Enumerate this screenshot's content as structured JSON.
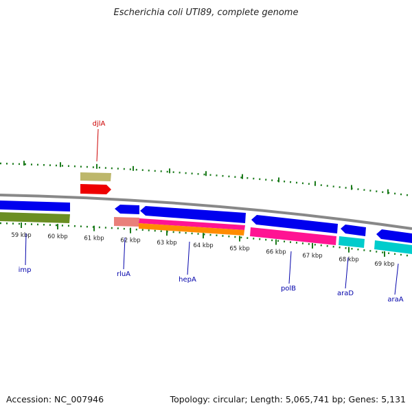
{
  "title": "Escherichia coli UTI89, complete genome",
  "footer": {
    "accession": "Accession: NC_007946",
    "summary": "Topology: circular; Length: 5,065,741 bp; Genes: 5,131"
  },
  "colors": {
    "backbone": "#888888",
    "ticks": "#1a7a1a",
    "blue": "#0000ee",
    "olive": "#6b8e23",
    "khaki": "#bdb76b",
    "red": "#ee0000",
    "salmon": "#e9807a",
    "pink": "#ff1493",
    "orange": "#ff8c00",
    "cyan": "#00cccc",
    "label_blue": "#0000aa",
    "label_red": "#cc0000"
  },
  "scale_labels": [
    "59 kbp",
    "60 kbp",
    "61 kbp",
    "62 kbp",
    "63 kbp",
    "64 kbp",
    "65 kbp",
    "66 kbp",
    "67 kbp",
    "68 kbp",
    "69 kbp"
  ],
  "gene_labels": [
    {
      "name": "djlA",
      "color": "label_red"
    },
    {
      "name": "imp",
      "color": "label_blue"
    },
    {
      "name": "rluA",
      "color": "label_blue"
    },
    {
      "name": "hepA",
      "color": "label_blue"
    },
    {
      "name": "polB",
      "color": "label_blue"
    },
    {
      "name": "araD",
      "color": "label_blue"
    },
    {
      "name": "araA",
      "color": "label_blue"
    }
  ]
}
